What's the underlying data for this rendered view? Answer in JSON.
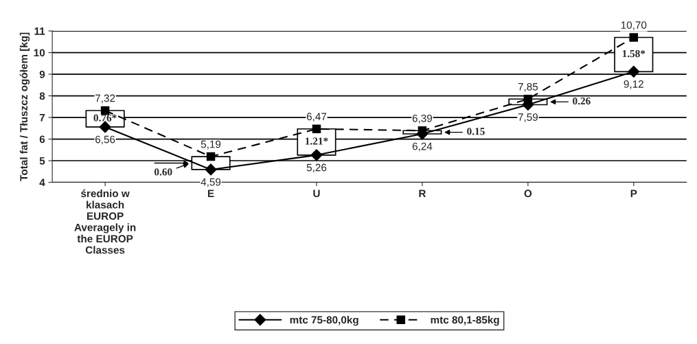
{
  "chart_data": {
    "type": "line",
    "ylabel": "Total fat / Tłuszcz ogółem [kg]",
    "categories": [
      "średnio w\nklasach\nEUROP\nAveragely in\nthe EUROP\nClasses",
      "E",
      "U",
      "R",
      "O",
      "P"
    ],
    "ylim": [
      4,
      11
    ],
    "yticks": [
      4,
      5,
      6,
      7,
      8,
      9,
      10,
      11
    ],
    "grid": "y",
    "legend": "bottom",
    "series": [
      {
        "name": "mtc 75-80,0kg",
        "color": "#000000",
        "marker": "diamond",
        "line_style": "solid",
        "values": [
          6.56,
          4.59,
          5.26,
          6.24,
          7.59,
          9.12
        ],
        "value_labels": [
          "6,56",
          "4,59",
          "5,26",
          "6,24",
          "7,59",
          "9,12"
        ]
      },
      {
        "name": "mtc 80,1-85kg",
        "color": "#000000",
        "marker": "square",
        "line_style": "dashed",
        "values": [
          7.32,
          5.19,
          6.47,
          6.39,
          7.85,
          10.7
        ],
        "value_labels": [
          "7,32",
          "5,19",
          "6,47",
          "6,39",
          "7,85",
          "10,70"
        ]
      },
      {
        "type": "bar",
        "color": "#ffffff",
        "base": [
          6.56,
          4.59,
          5.26,
          6.24,
          7.59,
          9.12
        ],
        "values": [
          0.76,
          0.6,
          1.21,
          0.15,
          0.26,
          1.58
        ],
        "value_labels": [
          "0.76*",
          "0.60",
          "1.21*",
          "0.15",
          "0.26",
          "1.58*"
        ]
      }
    ]
  }
}
